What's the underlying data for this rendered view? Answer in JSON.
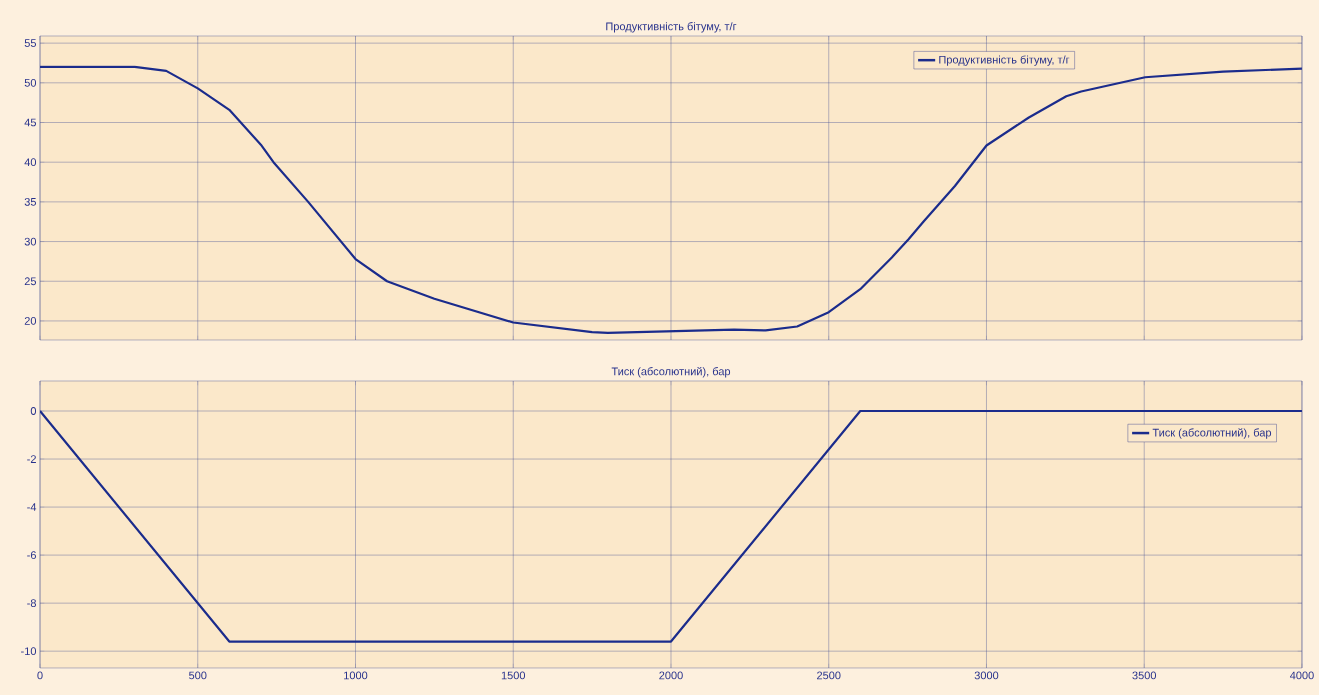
{
  "chart_data": [
    {
      "type": "line",
      "title": "Продуктивність бітуму, т/г",
      "xlim": [
        0,
        4000
      ],
      "xticks": [
        0,
        500,
        1000,
        1500,
        2000,
        2500,
        3000,
        3500,
        4000
      ],
      "ylim": [
        17.6,
        55.9
      ],
      "yticks": [
        20,
        25,
        30,
        35,
        40,
        45,
        50,
        55
      ],
      "grid": true,
      "legend": "top right",
      "tick_labels": "y",
      "x": [
        0,
        100,
        200,
        300,
        400,
        500,
        600,
        700,
        740,
        850,
        1000,
        1100,
        1250,
        1500,
        1750,
        1800,
        2000,
        2200,
        2300,
        2400,
        2500,
        2600,
        2700,
        2753,
        2800,
        2900,
        3000,
        3133,
        3253,
        3300,
        3503,
        3750,
        4000
      ],
      "series": [
        {
          "name": "Продуктивність бітуму, т/г",
          "color": "#1b2c8c",
          "values": [
            52,
            52,
            52,
            52,
            51.5,
            49.3,
            46.6,
            42.2,
            40,
            35,
            27.8,
            25,
            22.8,
            19.8,
            18.6,
            18.5,
            18.7,
            18.9,
            18.8,
            19.3,
            21.1,
            24,
            28,
            30.3,
            32.5,
            37,
            42.1,
            45.6,
            48.3,
            48.9,
            50.7,
            51.4,
            51.8
          ]
        }
      ]
    },
    {
      "type": "line",
      "title": "Тиск (абсолютний), бар",
      "xlim": [
        0,
        4000
      ],
      "xticks": [
        0,
        500,
        1000,
        1500,
        2000,
        2500,
        3000,
        3500,
        4000
      ],
      "ylim": [
        -10.7,
        1.25
      ],
      "yticks": [
        -10,
        -8,
        -6,
        -4,
        -2,
        0
      ],
      "grid": true,
      "legend": "right",
      "x": [
        0,
        600,
        2000,
        2600,
        4000
      ],
      "series": [
        {
          "name": "Тиск (абсолютний), бар",
          "color": "#1b2c8c",
          "values": [
            0,
            -9.6,
            -9.6,
            0,
            0
          ]
        }
      ]
    }
  ]
}
